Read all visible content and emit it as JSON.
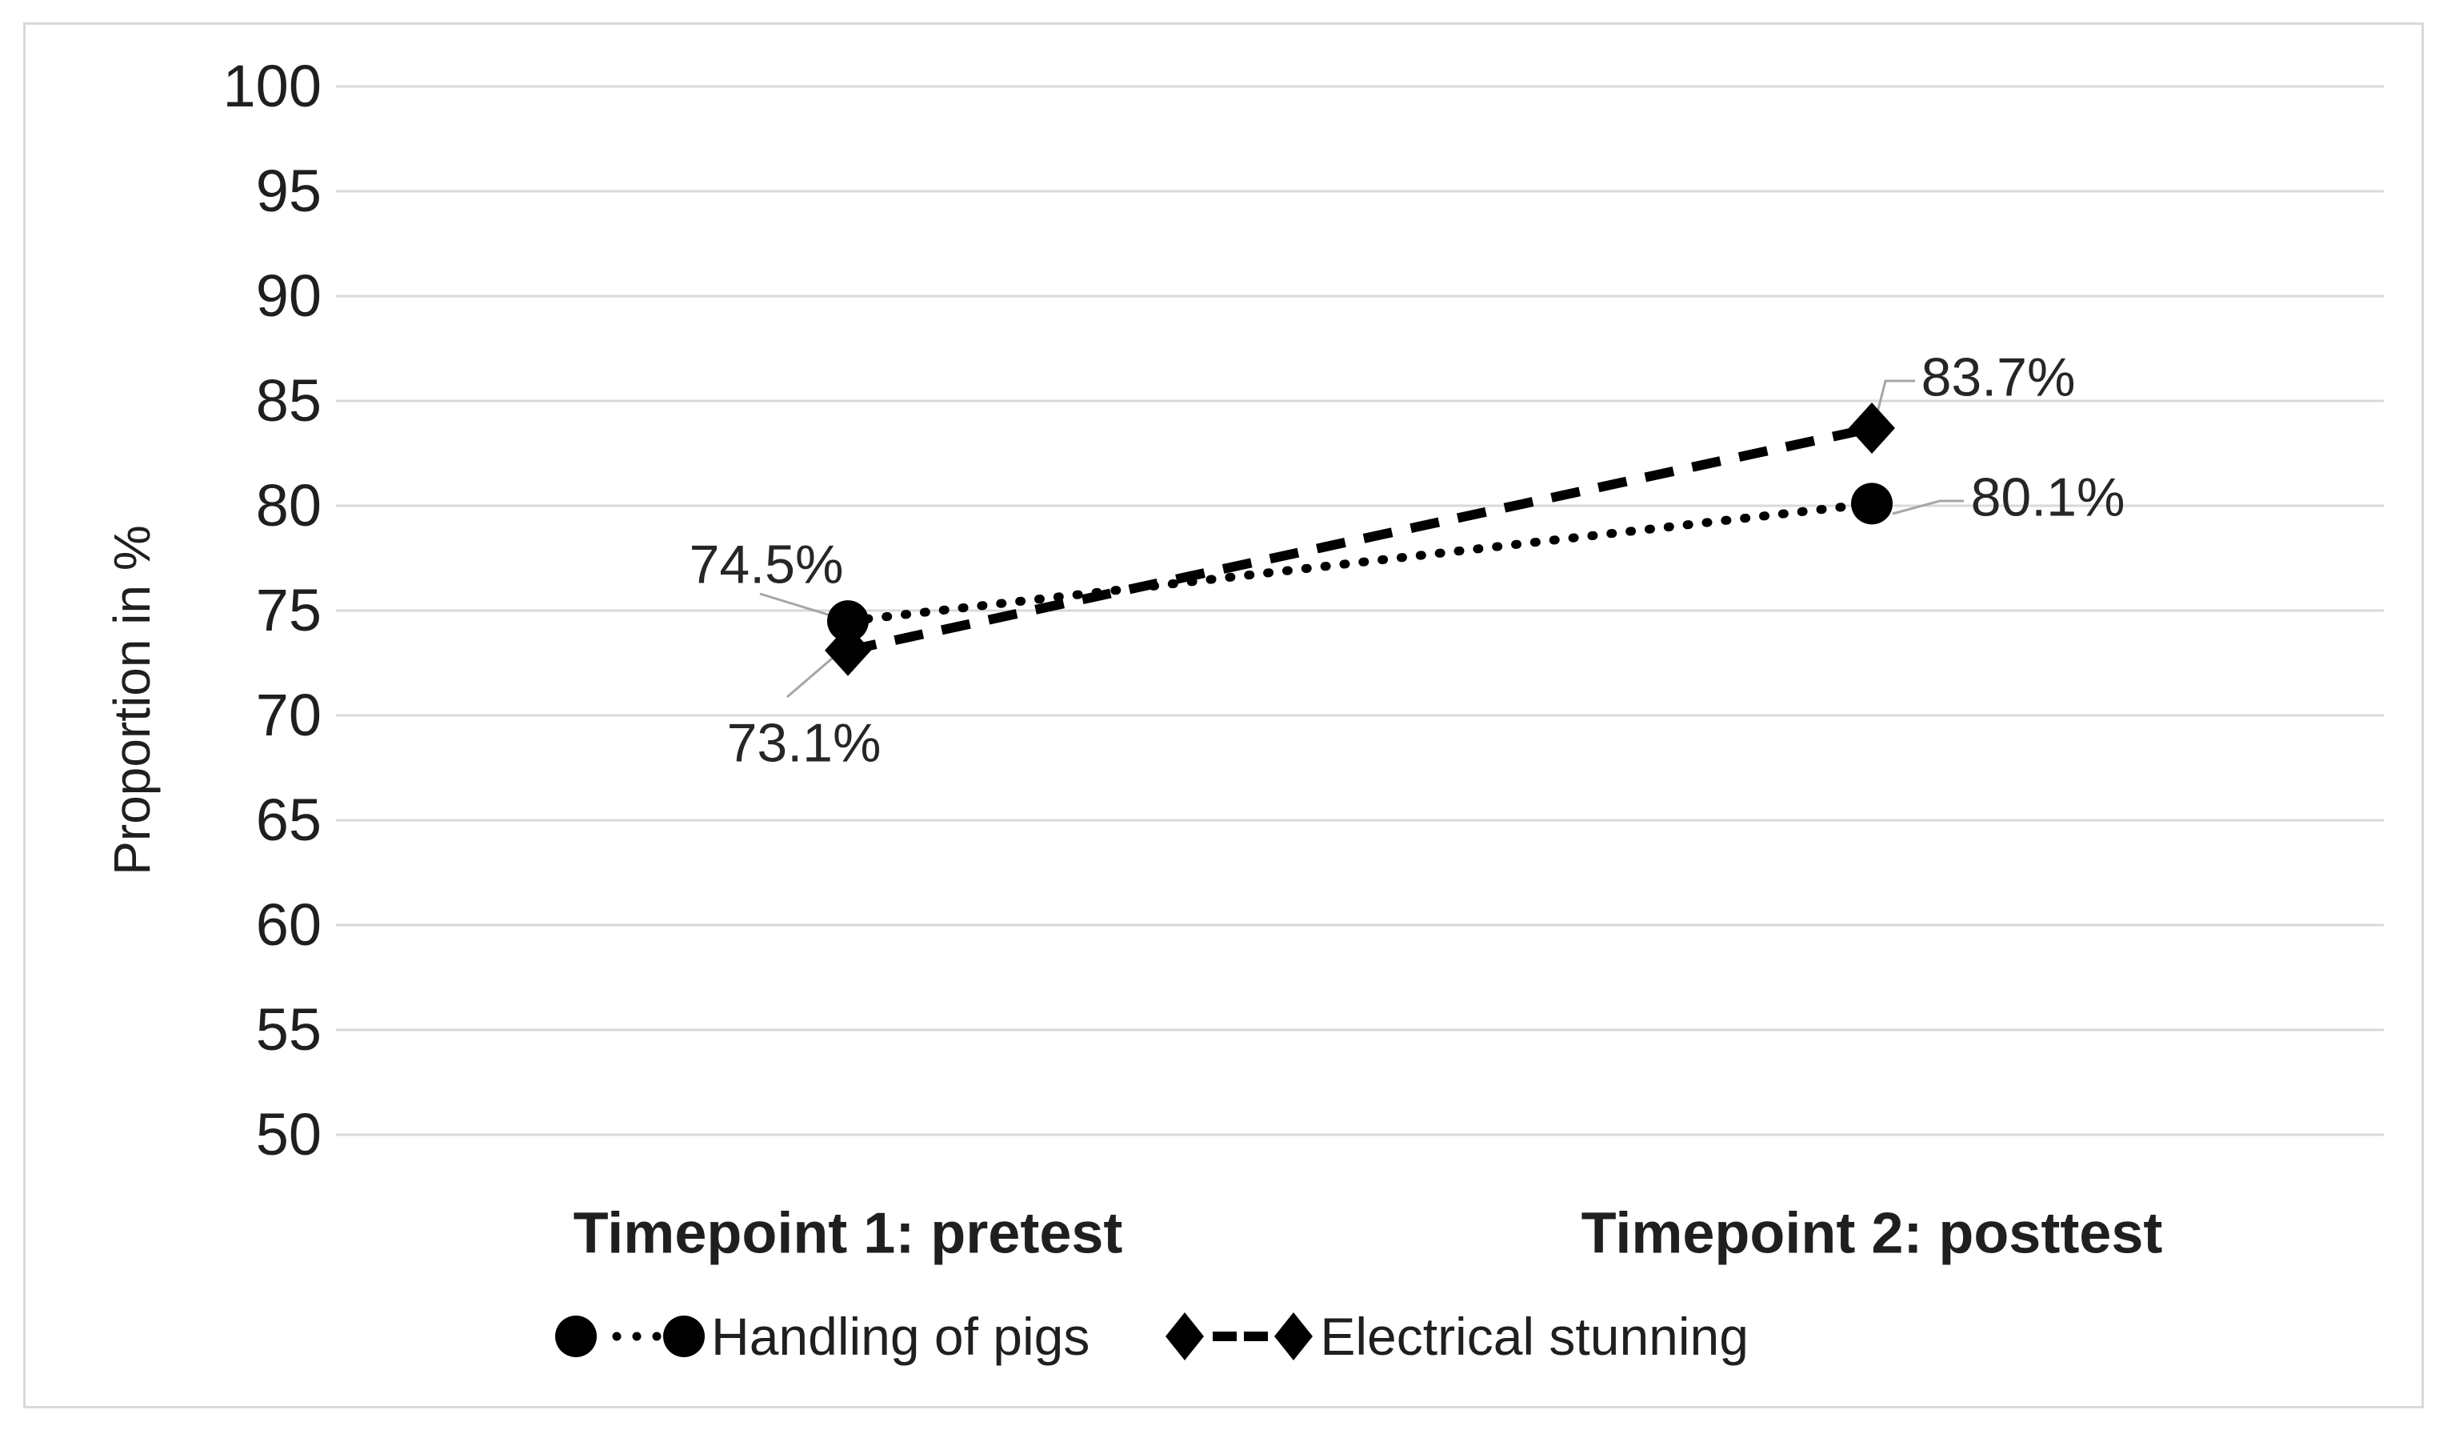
{
  "figure": {
    "background": "#ffffff",
    "border_color": "#d9d9d9"
  },
  "chart_data": {
    "type": "line",
    "title": "",
    "xlabel": "",
    "ylabel": "Proportion in %",
    "categories": [
      "Timepoint 1: pretest",
      "Timepoint 2: posttest"
    ],
    "series": [
      {
        "name": "Handling of pigs",
        "marker": "circle",
        "line_style": "dotted",
        "color": "#000000",
        "values": [
          74.5,
          80.1
        ],
        "data_labels": [
          "74.5%",
          "80.1%"
        ]
      },
      {
        "name": "Electrical stunning",
        "marker": "diamond",
        "line_style": "dashed",
        "color": "#000000",
        "values": [
          73.1,
          83.7
        ],
        "data_labels": [
          "73.1%",
          "83.7%"
        ]
      }
    ],
    "ylim": [
      50,
      100
    ],
    "ytick_values": [
      100,
      95,
      90,
      85,
      80,
      75,
      70,
      65,
      60,
      55,
      50
    ],
    "ytick_labels": [
      "100",
      "95",
      "90",
      "85",
      "80",
      "75",
      "70",
      "65",
      "60",
      "55",
      "50"
    ],
    "grid": "horizontal",
    "gridline_color": "#d9d9d9",
    "leader_line_color": "#a6a6a6",
    "text_color": "#1f1f1f",
    "legend_position": "bottom"
  }
}
